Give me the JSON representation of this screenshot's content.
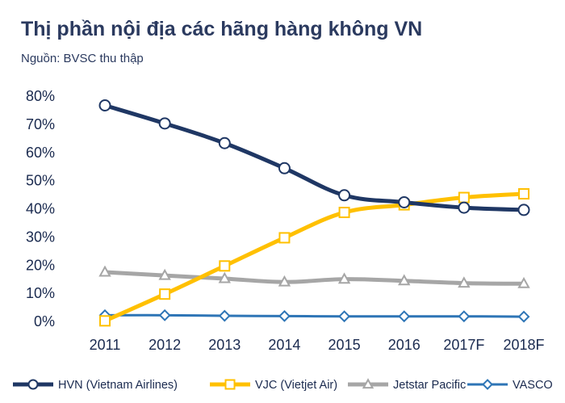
{
  "title": "Thị phần nội địa các hãng hàng không VN",
  "subtitle": "Nguồn: BVSC thu thập",
  "chart_data": {
    "type": "line",
    "categories": [
      "2011",
      "2012",
      "2013",
      "2014",
      "2015",
      "2016",
      "2017F",
      "2018F"
    ],
    "ylim": [
      0,
      80
    ],
    "yticks": [
      "0%",
      "10%",
      "20%",
      "30%",
      "40%",
      "50%",
      "60%",
      "70%",
      "80%"
    ],
    "grid": false,
    "legend_position": "bottom",
    "series": [
      {
        "name": "HVN (Vietnam Airlines)",
        "color": "#1f3764",
        "marker": "circle",
        "width": 5,
        "values": [
          76.7,
          70.3,
          63.3,
          54.4,
          44.8,
          42.3,
          40.4,
          39.6
        ]
      },
      {
        "name": "VJC (Vietjet Air)",
        "color": "#ffc000",
        "marker": "square",
        "width": 5,
        "values": [
          0.2,
          9.7,
          19.7,
          29.7,
          38.7,
          41.4,
          44.0,
          45.3
        ]
      },
      {
        "name": "Jetstar Pacific",
        "color": "#a6a6a6",
        "marker": "triangle",
        "width": 5,
        "values": [
          17.5,
          16.3,
          15.2,
          14.0,
          15.0,
          14.4,
          13.6,
          13.4
        ]
      },
      {
        "name": "VASCO",
        "color": "#2e75b6",
        "marker": "diamond",
        "width": 3,
        "values": [
          2.2,
          2.2,
          2.0,
          1.9,
          1.8,
          1.8,
          1.8,
          1.7
        ]
      }
    ]
  }
}
